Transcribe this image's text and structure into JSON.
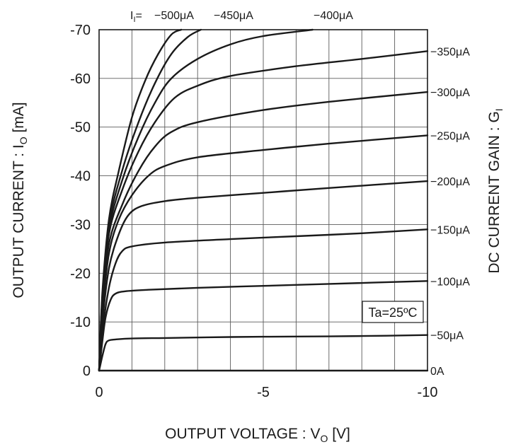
{
  "chart_data": {
    "type": "line",
    "xlabel": "OUTPUT VOLTAGE : V",
    "xlabel_sub": "O",
    "xlabel_unit": " [V]",
    "ylabel": "OUTPUT CURRENT : I",
    "ylabel_sub": "O",
    "ylabel_unit": " [mA]",
    "y2label": "DC CURRENT GAIN : G",
    "y2label_sub": "I",
    "xlim": [
      0,
      -10
    ],
    "ylim": [
      0,
      -70
    ],
    "x_ticks": [
      0,
      -5,
      -10
    ],
    "x_tick_labels": [
      "0",
      "-5",
      "-10"
    ],
    "y_ticks": [
      0,
      -10,
      -20,
      -30,
      -40,
      -50,
      -60,
      -70
    ],
    "y_tick_labels": [
      "0",
      "-10",
      "-20",
      "-30",
      "-40",
      "-50",
      "-60",
      "-70"
    ],
    "grid": true,
    "annotation": "Ta=25ºC",
    "top_prefix": "I",
    "top_prefix_sub": "I",
    "top_prefix_eq": "=",
    "series": [
      {
        "name": "0A",
        "label_position": "right",
        "points": [
          [
            0,
            0
          ],
          [
            -10,
            0
          ]
        ]
      },
      {
        "name": "−50μA",
        "label_position": "right",
        "points": [
          [
            0,
            0
          ],
          [
            -0.1,
            -3
          ],
          [
            -0.2,
            -5.5
          ],
          [
            -0.3,
            -6.2
          ],
          [
            -0.5,
            -6.4
          ],
          [
            -1,
            -6.6
          ],
          [
            -2,
            -6.7
          ],
          [
            -4,
            -6.9
          ],
          [
            -6,
            -7
          ],
          [
            -8,
            -7.1
          ],
          [
            -10,
            -7.3
          ]
        ]
      },
      {
        "name": "−100μA",
        "label_position": "right",
        "points": [
          [
            0,
            0
          ],
          [
            -0.1,
            -6
          ],
          [
            -0.2,
            -11
          ],
          [
            -0.35,
            -14.5
          ],
          [
            -0.5,
            -15.8
          ],
          [
            -0.8,
            -16.3
          ],
          [
            -1.5,
            -16.6
          ],
          [
            -3,
            -17
          ],
          [
            -5,
            -17.4
          ],
          [
            -7,
            -17.8
          ],
          [
            -10,
            -18.4
          ]
        ]
      },
      {
        "name": "−150μA",
        "label_position": "right",
        "points": [
          [
            0,
            0
          ],
          [
            -0.1,
            -8
          ],
          [
            -0.3,
            -17
          ],
          [
            -0.5,
            -22
          ],
          [
            -0.7,
            -24.5
          ],
          [
            -1,
            -25.5
          ],
          [
            -2,
            -26.3
          ],
          [
            -4,
            -27
          ],
          [
            -6,
            -27.6
          ],
          [
            -8,
            -28.2
          ],
          [
            -10,
            -29
          ]
        ]
      },
      {
        "name": "−200μA",
        "label_position": "right",
        "points": [
          [
            0,
            0
          ],
          [
            -0.1,
            -10
          ],
          [
            -0.3,
            -21
          ],
          [
            -0.6,
            -28
          ],
          [
            -0.9,
            -32
          ],
          [
            -1.3,
            -33.8
          ],
          [
            -2,
            -34.8
          ],
          [
            -3,
            -35.5
          ],
          [
            -5,
            -36.5
          ],
          [
            -7,
            -37.5
          ],
          [
            -10,
            -38.9
          ]
        ]
      },
      {
        "name": "−250μA",
        "label_position": "right",
        "points": [
          [
            0,
            0
          ],
          [
            -0.1,
            -12
          ],
          [
            -0.3,
            -24
          ],
          [
            -0.6,
            -31
          ],
          [
            -1,
            -36
          ],
          [
            -1.5,
            -40
          ],
          [
            -2,
            -42
          ],
          [
            -3,
            -43.8
          ],
          [
            -5,
            -45.3
          ],
          [
            -7,
            -46.6
          ],
          [
            -10,
            -48.3
          ]
        ]
      },
      {
        "name": "−300μA",
        "label_position": "right",
        "points": [
          [
            0,
            0
          ],
          [
            -0.1,
            -13
          ],
          [
            -0.3,
            -26
          ],
          [
            -0.7,
            -34
          ],
          [
            -1.2,
            -41
          ],
          [
            -1.7,
            -46
          ],
          [
            -2.2,
            -49
          ],
          [
            -3,
            -51
          ],
          [
            -5,
            -53.5
          ],
          [
            -7,
            -55.2
          ],
          [
            -10,
            -57.2
          ]
        ]
      },
      {
        "name": "−350μA",
        "label_position": "right",
        "points": [
          [
            0,
            0
          ],
          [
            -0.1,
            -14
          ],
          [
            -0.3,
            -28
          ],
          [
            -0.7,
            -37
          ],
          [
            -1.2,
            -45
          ],
          [
            -1.7,
            -51
          ],
          [
            -2.3,
            -56
          ],
          [
            -3,
            -58.5
          ],
          [
            -4,
            -60.5
          ],
          [
            -6,
            -62.5
          ],
          [
            -8,
            -64
          ],
          [
            -10,
            -65.6
          ]
        ]
      },
      {
        "name": "−400μA",
        "label_position": "top",
        "points": [
          [
            0,
            0
          ],
          [
            -0.1,
            -15
          ],
          [
            -0.3,
            -29
          ],
          [
            -0.7,
            -39
          ],
          [
            -1.2,
            -48
          ],
          [
            -1.7,
            -55
          ],
          [
            -2.2,
            -60
          ],
          [
            -3,
            -64
          ],
          [
            -4,
            -67
          ],
          [
            -5,
            -68.7
          ],
          [
            -6.5,
            -70
          ]
        ]
      },
      {
        "name": "−450μA",
        "label_position": "top",
        "points": [
          [
            0,
            0
          ],
          [
            -0.1,
            -15
          ],
          [
            -0.3,
            -30
          ],
          [
            -0.7,
            -41
          ],
          [
            -1.2,
            -51
          ],
          [
            -1.7,
            -59
          ],
          [
            -2.2,
            -65
          ],
          [
            -2.7,
            -68.5
          ],
          [
            -3.1,
            -70
          ]
        ]
      },
      {
        "name": "−500μA",
        "label_position": "top",
        "points": [
          [
            0,
            0
          ],
          [
            -0.1,
            -16
          ],
          [
            -0.3,
            -31
          ],
          [
            -0.6,
            -41
          ],
          [
            -1,
            -52
          ],
          [
            -1.4,
            -59.5
          ],
          [
            -1.8,
            -65
          ],
          [
            -2.2,
            -69
          ],
          [
            -2.5,
            -70
          ]
        ]
      }
    ]
  }
}
